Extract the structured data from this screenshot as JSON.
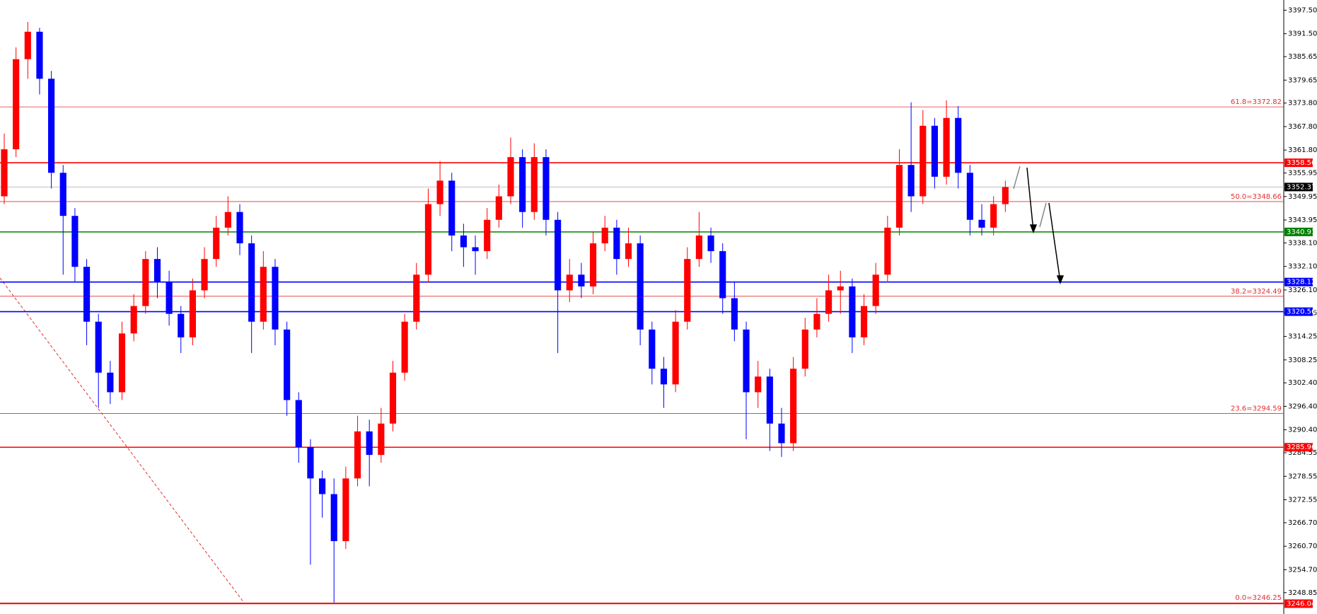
{
  "chart_data": {
    "type": "candlestick",
    "up_color": "#ff0000",
    "down_color": "#0000ff",
    "ylim": [
      3243.4,
      3400.1
    ],
    "yticks": [
      {
        "value": 3397.5,
        "label": "3397.50"
      },
      {
        "value": 3391.5,
        "label": "3391.50"
      },
      3385.65,
      3379.65,
      {
        "value": 3373.8,
        "label": "3373.80"
      },
      {
        "value": 3367.8,
        "label": "3367.80"
      },
      {
        "value": 3361.8,
        "label": "3361.80"
      },
      3355.95,
      3349.95,
      3343.95,
      {
        "value": 3338.1,
        "label": "3338.10"
      },
      {
        "value": 3332.1,
        "label": "3332.10"
      },
      {
        "value": 3326.1,
        "label": "3326.10"
      },
      3320.25,
      3314.25,
      3308.25,
      {
        "value": 3302.4,
        "label": "3302.40"
      },
      {
        "value": 3296.4,
        "label": "3296.40"
      },
      {
        "value": 3290.4,
        "label": "3290.40"
      },
      3284.55,
      3278.55,
      3272.55,
      {
        "value": 3266.7,
        "label": "3266.70"
      },
      {
        "value": 3260.7,
        "label": "3260.70"
      },
      {
        "value": 3254.7,
        "label": "3254.70"
      },
      3248.85
    ],
    "open": [
      3350,
      3362,
      3385,
      3392,
      3380,
      3356,
      3345,
      3332,
      3318,
      3305,
      3300,
      3315,
      3322,
      3334,
      3328,
      3320,
      3314,
      3326,
      3334,
      3342,
      3346,
      3338,
      3318,
      3332,
      3316,
      3298,
      3286,
      3278,
      3274,
      3262,
      3278,
      3290,
      3284,
      3292,
      3305,
      3318,
      3330,
      3348,
      3354,
      3340,
      3337,
      3336,
      3344,
      3350,
      3360,
      3346,
      3360,
      3344,
      3326,
      3330,
      3327,
      3338,
      3342,
      3334,
      3338,
      3316,
      3306,
      3302,
      3318,
      3334,
      3340,
      3336,
      3324,
      3316,
      3300,
      3304,
      3292,
      3287,
      3306,
      3316,
      3320,
      3326,
      3327,
      3314,
      3322,
      3330,
      3342,
      3358,
      3350,
      3368,
      3355,
      3370,
      3356,
      3344,
      3342,
      3348
    ],
    "high": [
      3366,
      3388,
      3394.5,
      3393,
      3382,
      3358,
      3347,
      3334,
      3320,
      3308,
      3318,
      3325,
      3336,
      3337,
      3331,
      3322,
      3329,
      3337,
      3345,
      3350,
      3348,
      3340,
      3336,
      3334,
      3318,
      3300,
      3288,
      3280,
      3278,
      3281,
      3294,
      3293,
      3296,
      3308,
      3320,
      3333,
      3352,
      3359,
      3356,
      3343,
      3340,
      3347,
      3353,
      3365,
      3362,
      3363.5,
      3362,
      3346,
      3334,
      3333,
      3341,
      3345,
      3344,
      3342,
      3340,
      3318,
      3309,
      3321,
      3337,
      3346,
      3342,
      3338,
      3328,
      3318,
      3308,
      3306,
      3296,
      3309,
      3319,
      3324,
      3330,
      3331,
      3329,
      3325,
      3333,
      3345,
      3362,
      3374,
      3372,
      3370,
      3374.5,
      3373,
      3358,
      3348,
      3350,
      3354
    ],
    "low": [
      3348,
      3360,
      3380,
      3376,
      3352,
      3330,
      3328,
      3312,
      3296,
      3297,
      3298,
      3313,
      3320,
      3324,
      3317,
      3310,
      3312,
      3324,
      3332,
      3340,
      3335,
      3310,
      3316,
      3312,
      3294,
      3282,
      3256,
      3268,
      3246.3,
      3260,
      3276,
      3276,
      3282,
      3290,
      3303,
      3316,
      3328,
      3345,
      3336,
      3332,
      3330,
      3334,
      3342,
      3348,
      3342,
      3344,
      3340,
      3310,
      3323,
      3324,
      3325,
      3336,
      3330,
      3332,
      3312,
      3302,
      3296,
      3300,
      3316,
      3332,
      3333,
      3320,
      3313,
      3288,
      3296,
      3285,
      3283.5,
      3285,
      3304,
      3314,
      3318,
      3320,
      3310,
      3312,
      3320,
      3328,
      3340,
      3346,
      3348,
      3352,
      3353,
      3352,
      3340,
      3340,
      3340,
      3346
    ],
    "close": [
      3362,
      3385,
      3392,
      3380,
      3356,
      3345,
      3332,
      3318,
      3305,
      3300,
      3315,
      3322,
      3334,
      3328,
      3320,
      3314,
      3326,
      3334,
      3342,
      3346,
      3338,
      3318,
      3332,
      3316,
      3298,
      3286,
      3278,
      3274,
      3262,
      3278,
      3290,
      3284,
      3292,
      3305,
      3318,
      3330,
      3348,
      3354,
      3340,
      3337,
      3336,
      3344,
      3350,
      3360,
      3346,
      3360,
      3344,
      3326,
      3330,
      3327,
      3338,
      3342,
      3334,
      3338,
      3316,
      3306,
      3302,
      3318,
      3334,
      3340,
      3336,
      3324,
      3316,
      3300,
      3304,
      3292,
      3287,
      3306,
      3316,
      3320,
      3326,
      3327,
      3314,
      3322,
      3330,
      3342,
      3358,
      3350,
      3368,
      3355,
      3370,
      3356,
      3344,
      3342,
      3348,
      3352.37
    ],
    "levels": [
      {
        "value": 3358.56,
        "color": "#ff0000"
      },
      {
        "value": 3340.91,
        "color": "#008000"
      },
      {
        "value": 3328.12,
        "color": "#0000ff"
      },
      {
        "value": 3320.56,
        "color": "#0000ff"
      },
      {
        "value": 3285.96,
        "color": "#ff0000"
      },
      {
        "value": 3246.04,
        "color": "#ff0000"
      }
    ],
    "fib_levels": [
      {
        "value": 3372.82,
        "label": "61.8=3372.82"
      },
      {
        "value": 3348.66,
        "label": "50.0=3348.66"
      },
      {
        "value": 3324.49,
        "label": "38.2=3324.49"
      },
      {
        "value": 3294.59,
        "label": "23.6=3294.59"
      },
      {
        "value": 3246.25,
        "label": "0.0=3246.25"
      }
    ],
    "fib_color": "#e03030",
    "current_price": {
      "value": 3352.37
    }
  }
}
